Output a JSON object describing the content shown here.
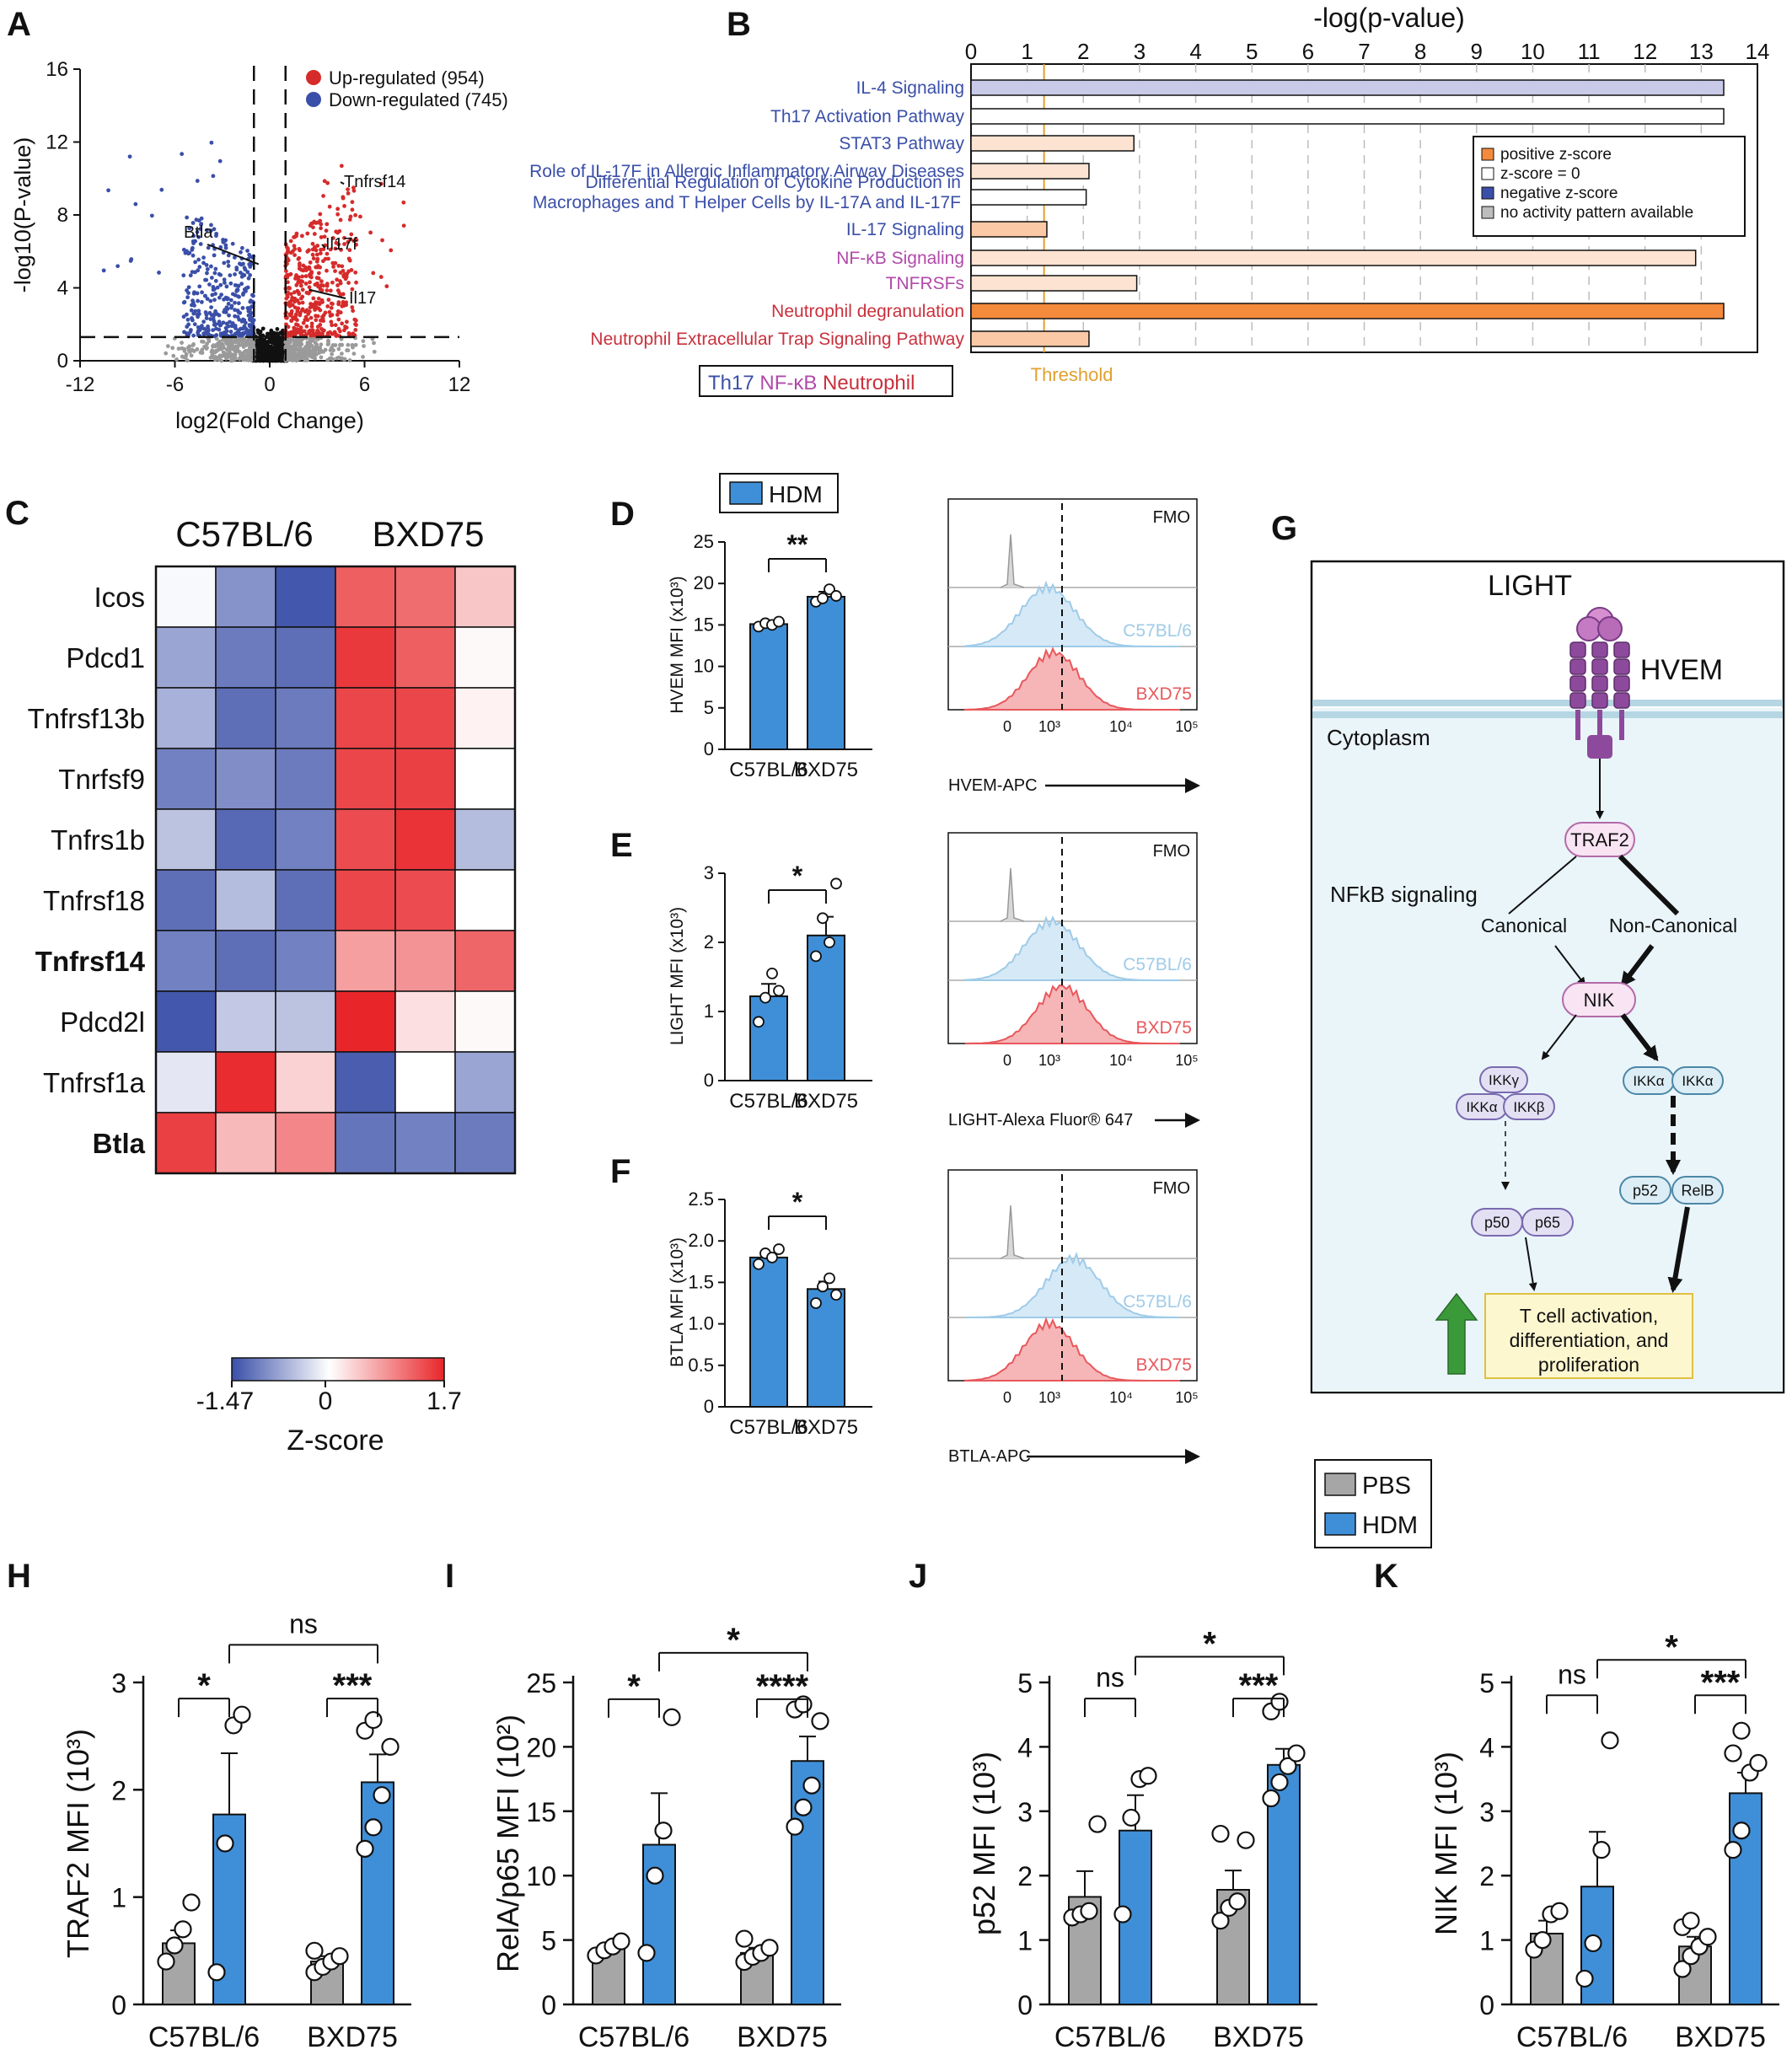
{
  "colors": {
    "up": "#d62b2b",
    "down": "#3a4fa8",
    "ns": "#9a9a9a",
    "pbs": "#a6a6a6",
    "hdm": "#3f8fd8",
    "fmo": "#bdbdbd",
    "c57": "#9fcbe8",
    "bxd": "#e8585c",
    "pos1": "#f48a3c",
    "pos2": "#fbc9a6",
    "pos3": "#fde4d2",
    "neg1": "#c8cae8",
    "blue_text": "#3a4fa8",
    "purple_text": "#b04aa8",
    "red_text": "#c9303c",
    "threshold": "#e0a030",
    "path_bg": "#eaf5fa",
    "pink": "#f8e4f3",
    "lav": "#e3e0f3",
    "lblue": "#dcedf5",
    "box_yellow": "#fdf7cf",
    "arrow_green": "#3a9a3a"
  },
  "panels": {
    "A": {
      "letter": "A",
      "xlabel": "log2(Fold Change)",
      "ylabel": "-log10(P-value)",
      "legend_up": "Up-regulated (954)",
      "legend_down": "Down-regulated (745)",
      "genes": [
        "Tnfrsf14",
        "Btla",
        "Il17f",
        "Il17"
      ]
    },
    "B": {
      "letter": "B",
      "title": "-log(p-value)",
      "threshold_label": "Threshold",
      "legend": [
        "positive z-score",
        "z-score = 0",
        "negative z-score",
        "no activity pattern available"
      ],
      "key": [
        "Th17",
        "NF-κB",
        "Neutrophil"
      ]
    },
    "C": {
      "letter": "C",
      "groups": [
        "C57BL/6",
        "BXD75"
      ],
      "scale_min": "-1.47",
      "scale_mid": "0",
      "scale_max": "1.7",
      "scale_title": "Z-score"
    },
    "D": {
      "letter": "D",
      "legend": "HDM",
      "ylabel": "HVEM MFI (x10³)",
      "sig": "**",
      "xaxis": "HVEM-APC"
    },
    "E": {
      "letter": "E",
      "ylabel": "LIGHT MFI (x10³)",
      "sig": "*",
      "xaxis": "LIGHT-Alexa Fluor® 647"
    },
    "F": {
      "letter": "F",
      "ylabel": "BTLA MFI (x10³)",
      "sig": "*",
      "xaxis": "BTLA-APC"
    },
    "G": {
      "letter": "G",
      "light": "LIGHT",
      "hvem": "HVEM",
      "cytoplasm": "Cytoplasm",
      "traf2": "TRAF2",
      "nfkb": "NFkB signaling",
      "canonical": "Canonical",
      "noncanonical": "Non-Canonical",
      "nik": "NIK",
      "ikkg": "IKKγ",
      "ikka": "IKKα",
      "ikkb": "IKKβ",
      "p50": "p50",
      "p65": "p65",
      "p52": "p52",
      "relb": "RelB",
      "outcome": [
        "T cell activation,",
        "differentiation, and",
        "proliferation"
      ]
    },
    "H": {
      "letter": "H"
    },
    "I": {
      "letter": "I"
    },
    "J": {
      "letter": "J"
    },
    "K": {
      "letter": "K"
    },
    "hk_legend": [
      "PBS",
      "HDM"
    ]
  },
  "flow_labels": {
    "fmo": "FMO",
    "c57": "C57BL/6",
    "bxd": "BXD75",
    "ticks": [
      "0",
      "10³",
      "10⁴",
      "10⁵"
    ]
  },
  "chart_data": [
    {
      "panel": "A",
      "type": "scatter",
      "title": "",
      "xlabel": "log2(Fold Change)",
      "ylabel": "-log10(P-value)",
      "xlim": [
        -12,
        12
      ],
      "ylim": [
        0,
        16
      ],
      "xticks": [
        -12,
        -6,
        0,
        6,
        12
      ],
      "xtick_labels": [
        "-12",
        "-6",
        "0",
        "6",
        "12"
      ],
      "yticks": [
        0,
        4,
        8,
        12,
        16
      ],
      "ytick_labels": [
        "0",
        "4",
        "8",
        "12",
        "16"
      ],
      "series": [
        {
          "name": "Up-regulated (954)",
          "count": 954
        },
        {
          "name": "Down-regulated (745)",
          "count": 745
        }
      ],
      "thresholds": {
        "log2fc": [
          -1,
          1
        ],
        "neglog10p": 1.3
      },
      "labeled_points": [
        {
          "name": "Tnfrsf14",
          "x": 4.7,
          "y": 9.7
        },
        {
          "name": "Btla",
          "x": -0.7,
          "y": 5.3
        },
        {
          "name": "Il17f",
          "x": 3.5,
          "y": 6.2
        },
        {
          "name": "Il17",
          "x": 2.5,
          "y": 3.9
        }
      ]
    },
    {
      "panel": "B",
      "type": "bar",
      "orientation": "horizontal",
      "title": "-log(p-value)",
      "xlim": [
        0,
        14
      ],
      "xticks": [
        0,
        1,
        2,
        3,
        4,
        5,
        6,
        7,
        8,
        9,
        10,
        11,
        12,
        13,
        14
      ],
      "xtick_labels": [
        "0",
        "1",
        "2",
        "3",
        "4",
        "5",
        "6",
        "7",
        "8",
        "9",
        "10",
        "11",
        "12",
        "13",
        "14"
      ],
      "threshold": 1.3,
      "categories": [
        "IL-4 Signaling",
        "Th17 Activation Pathway",
        "STAT3 Pathway",
        "Role of IL-17F in Allergic Inflammatory Airway Diseases",
        "Differential Regulation of Cytokine Production in|Macrophages and T Helper Cells by IL-17A and IL-17F",
        "IL-17 Signaling",
        "NF-κB Signaling",
        "TNFRSFs",
        "Neutrophil degranulation",
        "Neutrophil Extracellular Trap Signaling Pathway"
      ],
      "values": [
        13.4,
        13.4,
        2.9,
        2.1,
        2.05,
        1.35,
        12.9,
        2.95,
        13.4,
        2.1
      ],
      "zscore_class": [
        "neg1",
        "zero",
        "pos3",
        "pos3",
        "zero",
        "pos2",
        "pos3",
        "pos3",
        "pos1",
        "pos2"
      ],
      "label_group": [
        "th17",
        "th17",
        "th17",
        "th17",
        "th17",
        "th17",
        "nfkb",
        "nfkb",
        "neut",
        "neut"
      ]
    },
    {
      "panel": "C",
      "type": "heatmap",
      "title": "",
      "rows": [
        "Icos",
        "Pdcd1",
        "Tnfrsf13b",
        "Tnrfsf9",
        "Tnfrs1b",
        "Tnfrsf18",
        "Tnfrsf14",
        "Pdcd2l",
        "Tnfrsf1a",
        "Btla"
      ],
      "bold_rows": [
        "Tnfrsf14",
        "Btla"
      ],
      "groups": [
        "C57BL/6",
        "BXD75"
      ],
      "zlim": [
        -1.47,
        1.7
      ],
      "values": [
        [
          -0.05,
          -0.9,
          -1.4,
          1.25,
          1.15,
          0.45
        ],
        [
          -0.75,
          -1.1,
          -1.2,
          1.55,
          1.25,
          0.05
        ],
        [
          -0.65,
          -1.2,
          -1.1,
          1.45,
          1.45,
          0.1
        ],
        [
          -1.05,
          -0.95,
          -1.1,
          1.45,
          1.5,
          0.0
        ],
        [
          -0.5,
          -1.25,
          -1.05,
          1.4,
          1.6,
          -0.55
        ],
        [
          -1.2,
          -0.55,
          -1.2,
          1.45,
          1.4,
          0.0
        ],
        [
          -1.05,
          -1.2,
          -1.05,
          0.75,
          0.85,
          1.2
        ],
        [
          -1.4,
          -0.45,
          -0.5,
          1.7,
          0.25,
          0.05
        ],
        [
          -0.2,
          1.65,
          0.35,
          -1.35,
          0.0,
          -0.75
        ],
        [
          1.5,
          0.55,
          0.95,
          -1.15,
          -1.05,
          -1.1
        ]
      ]
    },
    {
      "panel": "D",
      "type": "bar",
      "ylabel": "HVEM MFI (x10³)",
      "categories": [
        "C57BL/6",
        "BXD75"
      ],
      "values": [
        15.1,
        18.4
      ],
      "errors": [
        0.4,
        0.6
      ],
      "ylim": [
        0,
        25
      ],
      "yticks": [
        0,
        5,
        10,
        15,
        20,
        25
      ],
      "points": [
        [
          14.8,
          15.2,
          15.0,
          15.4
        ],
        [
          17.8,
          18.2,
          19.3,
          18.5
        ]
      ],
      "significance": "**"
    },
    {
      "panel": "E",
      "type": "bar",
      "ylabel": "LIGHT MFI (x10³)",
      "categories": [
        "C57BL/6",
        "BXD75"
      ],
      "values": [
        1.22,
        2.1
      ],
      "errors": [
        0.18,
        0.27
      ],
      "ylim": [
        0,
        3
      ],
      "yticks": [
        0,
        1,
        2,
        3
      ],
      "points": [
        [
          0.85,
          1.2,
          1.55,
          1.3
        ],
        [
          1.8,
          2.35,
          2.0,
          2.85
        ]
      ],
      "significance": "*"
    },
    {
      "panel": "F",
      "type": "bar",
      "ylabel": "BTLA MFI (x10³)",
      "categories": [
        "C57BL/6",
        "BXD75"
      ],
      "values": [
        1.8,
        1.42
      ],
      "errors": [
        0.05,
        0.09
      ],
      "ylim": [
        0,
        2.5
      ],
      "yticks": [
        0,
        0.5,
        1.0,
        1.5,
        2.0,
        2.5
      ],
      "ytick_labels": [
        "0",
        "0.5",
        "1.0",
        "1.5",
        "2.0",
        "2.5"
      ],
      "points": [
        [
          1.72,
          1.85,
          1.8,
          1.9
        ],
        [
          1.25,
          1.45,
          1.55,
          1.35
        ]
      ],
      "significance": "*"
    },
    {
      "panel": "H",
      "type": "bar",
      "ylabel": "TRAF2 MFI (10³)",
      "categories": [
        "C57BL/6",
        "BXD75"
      ],
      "series": [
        {
          "name": "PBS",
          "values": [
            0.57,
            0.4
          ],
          "errors": [
            0.12,
            0.05
          ]
        },
        {
          "name": "HDM",
          "values": [
            1.77,
            2.07
          ],
          "errors": [
            0.57,
            0.26
          ]
        }
      ],
      "ylim": [
        0,
        3
      ],
      "yticks": [
        0,
        1,
        2,
        3
      ],
      "points": {
        "PBS": [
          [
            0.4,
            0.55,
            0.7,
            0.95
          ],
          [
            0.3,
            0.35,
            0.4,
            0.45,
            0.5
          ]
        ],
        "HDM": [
          [
            0.3,
            1.5,
            2.6,
            2.7
          ],
          [
            1.45,
            1.65,
            1.95,
            2.4,
            2.55,
            2.65
          ]
        ]
      },
      "significance": {
        "pbs_vs_hdm": [
          "*",
          "***"
        ],
        "hdm_vs_hdm": "ns"
      }
    },
    {
      "panel": "I",
      "type": "bar",
      "ylabel": "RelA/p65 MFI (10²)",
      "categories": [
        "C57BL/6",
        "BXD75"
      ],
      "series": [
        {
          "name": "PBS",
          "values": [
            4.3,
            4.0
          ],
          "errors": [
            0.4,
            0.4
          ]
        },
        {
          "name": "HDM",
          "values": [
            12.4,
            18.9
          ],
          "errors": [
            4.0,
            1.9
          ]
        }
      ],
      "ylim": [
        0,
        25
      ],
      "yticks": [
        0,
        5,
        10,
        15,
        20,
        25
      ],
      "points": {
        "PBS": [
          [
            3.8,
            4.2,
            4.5,
            4.9
          ],
          [
            3.3,
            3.7,
            4.0,
            4.4,
            5.1
          ]
        ],
        "HDM": [
          [
            4.0,
            10.0,
            13.5,
            22.3
          ],
          [
            13.8,
            15.3,
            17.0,
            22.0,
            22.9,
            23.3
          ]
        ]
      },
      "significance": {
        "pbs_vs_hdm": [
          "*",
          "****"
        ],
        "hdm_vs_hdm": "*"
      }
    },
    {
      "panel": "J",
      "type": "bar",
      "ylabel": "p52 MFI (10³)",
      "categories": [
        "C57BL/6",
        "BXD75"
      ],
      "series": [
        {
          "name": "PBS",
          "values": [
            1.67,
            1.78
          ],
          "errors": [
            0.4,
            0.3
          ]
        },
        {
          "name": "HDM",
          "values": [
            2.7,
            3.72
          ],
          "errors": [
            0.55,
            0.25
          ]
        }
      ],
      "ylim": [
        0,
        5
      ],
      "yticks": [
        0,
        1,
        2,
        3,
        4,
        5
      ],
      "points": {
        "PBS": [
          [
            1.35,
            1.4,
            1.45,
            2.8
          ],
          [
            1.3,
            1.5,
            1.6,
            2.55,
            2.65
          ]
        ],
        "HDM": [
          [
            1.4,
            2.9,
            3.5,
            3.55
          ],
          [
            3.2,
            3.45,
            3.7,
            3.9,
            4.55,
            4.7
          ]
        ]
      },
      "significance": {
        "pbs_vs_hdm": [
          "ns",
          "***"
        ],
        "hdm_vs_hdm": "*"
      }
    },
    {
      "panel": "K",
      "type": "bar",
      "ylabel": "NIK MFI (10³)",
      "categories": [
        "C57BL/6",
        "BXD75"
      ],
      "series": [
        {
          "name": "PBS",
          "values": [
            1.1,
            0.9
          ],
          "errors": [
            0.2,
            0.15
          ]
        },
        {
          "name": "HDM",
          "values": [
            1.83,
            3.28
          ],
          "errors": [
            0.85,
            0.32
          ]
        }
      ],
      "ylim": [
        0,
        5
      ],
      "yticks": [
        0,
        1,
        2,
        3,
        4,
        5
      ],
      "points": {
        "PBS": [
          [
            0.85,
            1.0,
            1.4,
            1.45
          ],
          [
            0.55,
            0.75,
            0.9,
            1.05,
            1.2,
            1.3
          ]
        ],
        "HDM": [
          [
            0.4,
            0.95,
            2.4,
            4.1
          ],
          [
            2.4,
            2.7,
            3.6,
            3.75,
            3.9,
            4.25
          ]
        ]
      },
      "significance": {
        "pbs_vs_hdm": [
          "ns",
          "***"
        ],
        "hdm_vs_hdm": "*"
      }
    }
  ]
}
